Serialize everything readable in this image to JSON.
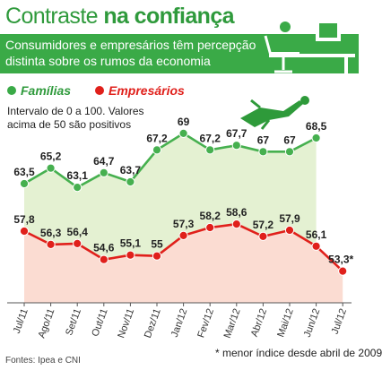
{
  "header": {
    "title_part1": "Contraste ",
    "title_part2": "na confiança",
    "subtitle_line1": "Consumidores e empresários têm percepção",
    "subtitle_line2": "distinta sobre os rumos da economia"
  },
  "colors": {
    "green": "#3aaa47",
    "green_line": "#46b04f",
    "green_fill": "#e4f1d2",
    "red": "#e0201b",
    "red_fill": "#fbdcd2"
  },
  "footnote": "* menor índice desde abril de 2009",
  "source": "Fontes: Ipea e CNI",
  "chart_data": {
    "type": "line",
    "categories": [
      "Jul/11",
      "Ago/11",
      "Set/11",
      "Out/11",
      "Nov/11",
      "Dez/11",
      "Jan/12",
      "Fev/12",
      "Mar/12",
      "Abr/12",
      "Mai/12",
      "Jun/12",
      "Jul/12"
    ],
    "series": [
      {
        "name": "Famílias",
        "values": [
          63.5,
          65.2,
          63.1,
          64.7,
          63.7,
          67.2,
          69,
          67.2,
          67.7,
          67,
          67,
          68.5,
          null
        ],
        "labels": [
          "63,5",
          "65,2",
          "63,1",
          "64,7",
          "63,7",
          "67,2",
          "69",
          "67,2",
          "67,7",
          "67",
          "67",
          "68,5",
          ""
        ]
      },
      {
        "name": "Empresários",
        "values": [
          57.8,
          56.3,
          56.4,
          54.6,
          55.1,
          55,
          57.3,
          58.2,
          58.6,
          57.2,
          57.9,
          56.1,
          53.3
        ],
        "labels": [
          "57,8",
          "56,3",
          "56,4",
          "54,6",
          "55,1",
          "55",
          "57,3",
          "58,2",
          "58,6",
          "57,2",
          "57,9",
          "56,1",
          "53,3*"
        ]
      }
    ],
    "note_line1": "Intervalo de 0 a 100. Valores",
    "note_line2": "acima de 50 são positivos",
    "grid": false,
    "legend_position": "top-left"
  }
}
